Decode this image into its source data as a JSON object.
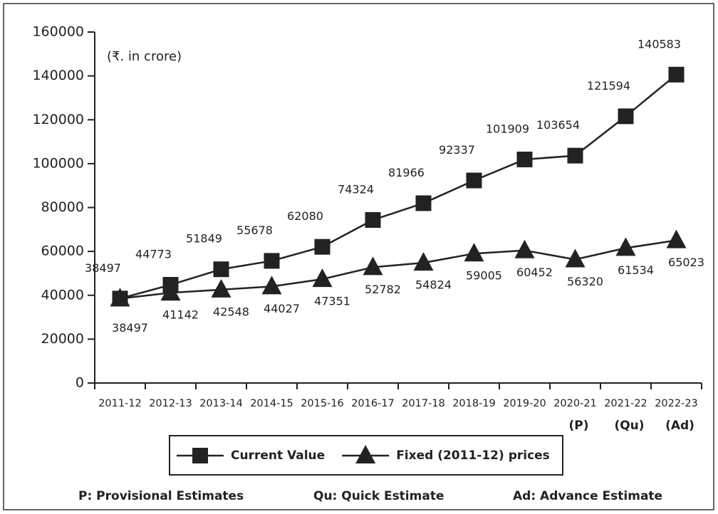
{
  "chart_data": {
    "type": "line",
    "annotation": "(₹. in crore)",
    "categories": [
      "2011-12",
      "2012-13",
      "2013-14",
      "2014-15",
      "2015-16",
      "2016-17",
      "2017-18",
      "2018-19",
      "2019-20",
      "2020-21",
      "2021-22",
      "2022-23"
    ],
    "category_notes": [
      null,
      null,
      null,
      null,
      null,
      null,
      null,
      null,
      null,
      "(P)",
      "(Qu)",
      "(Ad)"
    ],
    "series": [
      {
        "name": "Current Value",
        "color": "#222222",
        "marker": "square",
        "values": [
          38497,
          44773,
          51849,
          55678,
          62080,
          74324,
          81966,
          92337,
          101909,
          103654,
          121594,
          140583
        ]
      },
      {
        "name": "Fixed (2011-12) prices",
        "color": "#222222",
        "marker": "triangle",
        "values": [
          38497,
          41142,
          42548,
          44027,
          47351,
          52782,
          54824,
          59005,
          60452,
          56320,
          61534,
          65023
        ]
      }
    ],
    "ylim": [
      0,
      160000
    ],
    "yticks": [
      0,
      20000,
      40000,
      60000,
      80000,
      100000,
      120000,
      140000,
      160000
    ],
    "legend": "bottom",
    "notes": [
      "P: Provisional Estimates",
      "Qu: Quick Estimate",
      "Ad: Advance Estimate"
    ]
  }
}
